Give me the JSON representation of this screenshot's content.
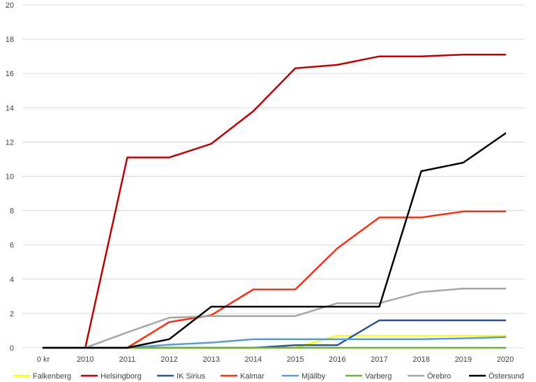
{
  "chart_data": {
    "type": "line",
    "title": "",
    "xlabel": "",
    "ylabel": "",
    "categories": [
      "0 kr",
      "2010",
      "2011",
      "2012",
      "2013",
      "2014",
      "2015",
      "2016",
      "2017",
      "2018",
      "2019",
      "2020"
    ],
    "ylim": [
      0,
      20
    ],
    "yticks": [
      0,
      2,
      4,
      6,
      8,
      10,
      12,
      14,
      16,
      18,
      20
    ],
    "grid": "horizontal",
    "legend_position": "bottom",
    "series": [
      {
        "name": "Falkenberg",
        "color": "#ffff00",
        "values": [
          0,
          0,
          0,
          0,
          0,
          0,
          0,
          0.7,
          0.7,
          0.7,
          0.7,
          0.7
        ]
      },
      {
        "name": "Helsingborg",
        "color": "#c00000",
        "values": [
          0,
          0,
          11.1,
          11.1,
          11.9,
          13.8,
          16.3,
          16.5,
          17.0,
          17.0,
          17.1,
          17.1
        ]
      },
      {
        "name": "IK Sirius",
        "color": "#2f5597",
        "values": [
          0,
          0,
          0,
          0,
          0,
          0,
          0.15,
          0.15,
          1.6,
          1.6,
          1.6,
          1.6
        ]
      },
      {
        "name": "Kalmar",
        "color": "#ff2d10",
        "values": [
          0,
          0,
          0,
          1.5,
          1.9,
          3.4,
          3.4,
          5.8,
          7.6,
          7.6,
          7.95,
          7.95
        ]
      },
      {
        "name": "Mjällby",
        "color": "#5b9bd5",
        "values": [
          0,
          0,
          0,
          0.18,
          0.3,
          0.5,
          0.5,
          0.5,
          0.5,
          0.5,
          0.55,
          0.62
        ]
      },
      {
        "name": "Varberg",
        "color": "#70ad47",
        "values": [
          0,
          0,
          0,
          0,
          0,
          0,
          0,
          0,
          0,
          0,
          0,
          0
        ]
      },
      {
        "name": "Örebro",
        "color": "#a6a6a6",
        "values": [
          0,
          0,
          0.9,
          1.75,
          1.85,
          1.85,
          1.85,
          2.6,
          2.6,
          3.25,
          3.45,
          3.45
        ]
      },
      {
        "name": "Östersund",
        "color": "#000000",
        "values": [
          0,
          0,
          0,
          0.5,
          2.4,
          2.4,
          2.4,
          2.4,
          2.4,
          10.3,
          10.8,
          12.5
        ]
      }
    ]
  }
}
